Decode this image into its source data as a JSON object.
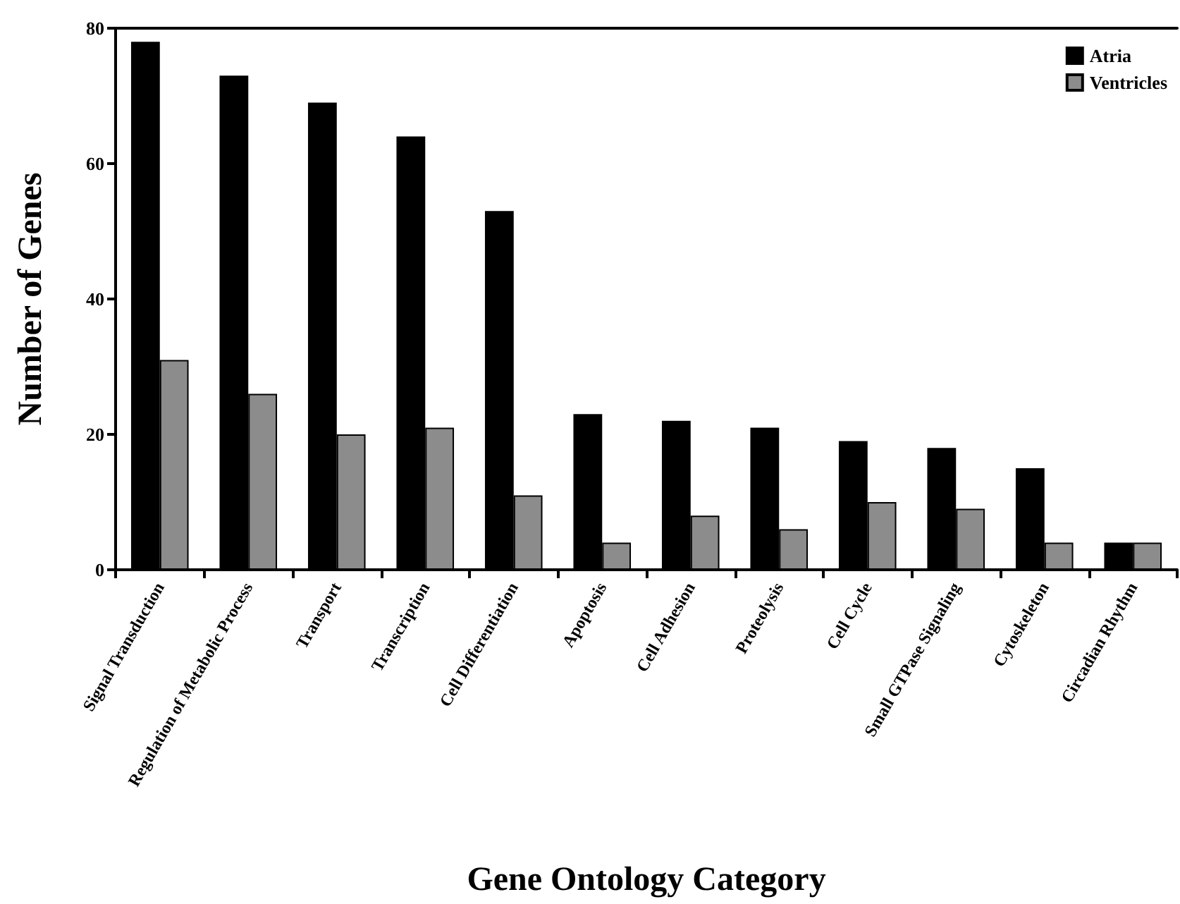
{
  "chart_data": {
    "type": "bar",
    "xlabel": "Gene Ontology Category",
    "ylabel": "Number of Genes",
    "categories": [
      "Signal Transduction",
      "Regulation of Metabolic Process",
      "Transport",
      "Transcription",
      "Cell Differentiation",
      "Apoptosis",
      "Cell Adhesion",
      "Proteolysis",
      "Cell Cycle",
      "Small GTPase Signaling",
      "Cytoskeleton",
      "Circadian Rhythm"
    ],
    "series": [
      {
        "name": "Atria",
        "color": "#000000",
        "values": [
          78,
          73,
          69,
          64,
          53,
          23,
          22,
          21,
          19,
          18,
          15,
          4
        ]
      },
      {
        "name": "Ventricles",
        "color": "#8c8c8c",
        "values": [
          31,
          26,
          20,
          21,
          11,
          4,
          8,
          6,
          10,
          9,
          4,
          4
        ]
      }
    ],
    "ylim": [
      0,
      80
    ],
    "yticks": [
      0,
      20,
      40,
      60,
      80
    ],
    "grid": false,
    "legend": "top right"
  }
}
